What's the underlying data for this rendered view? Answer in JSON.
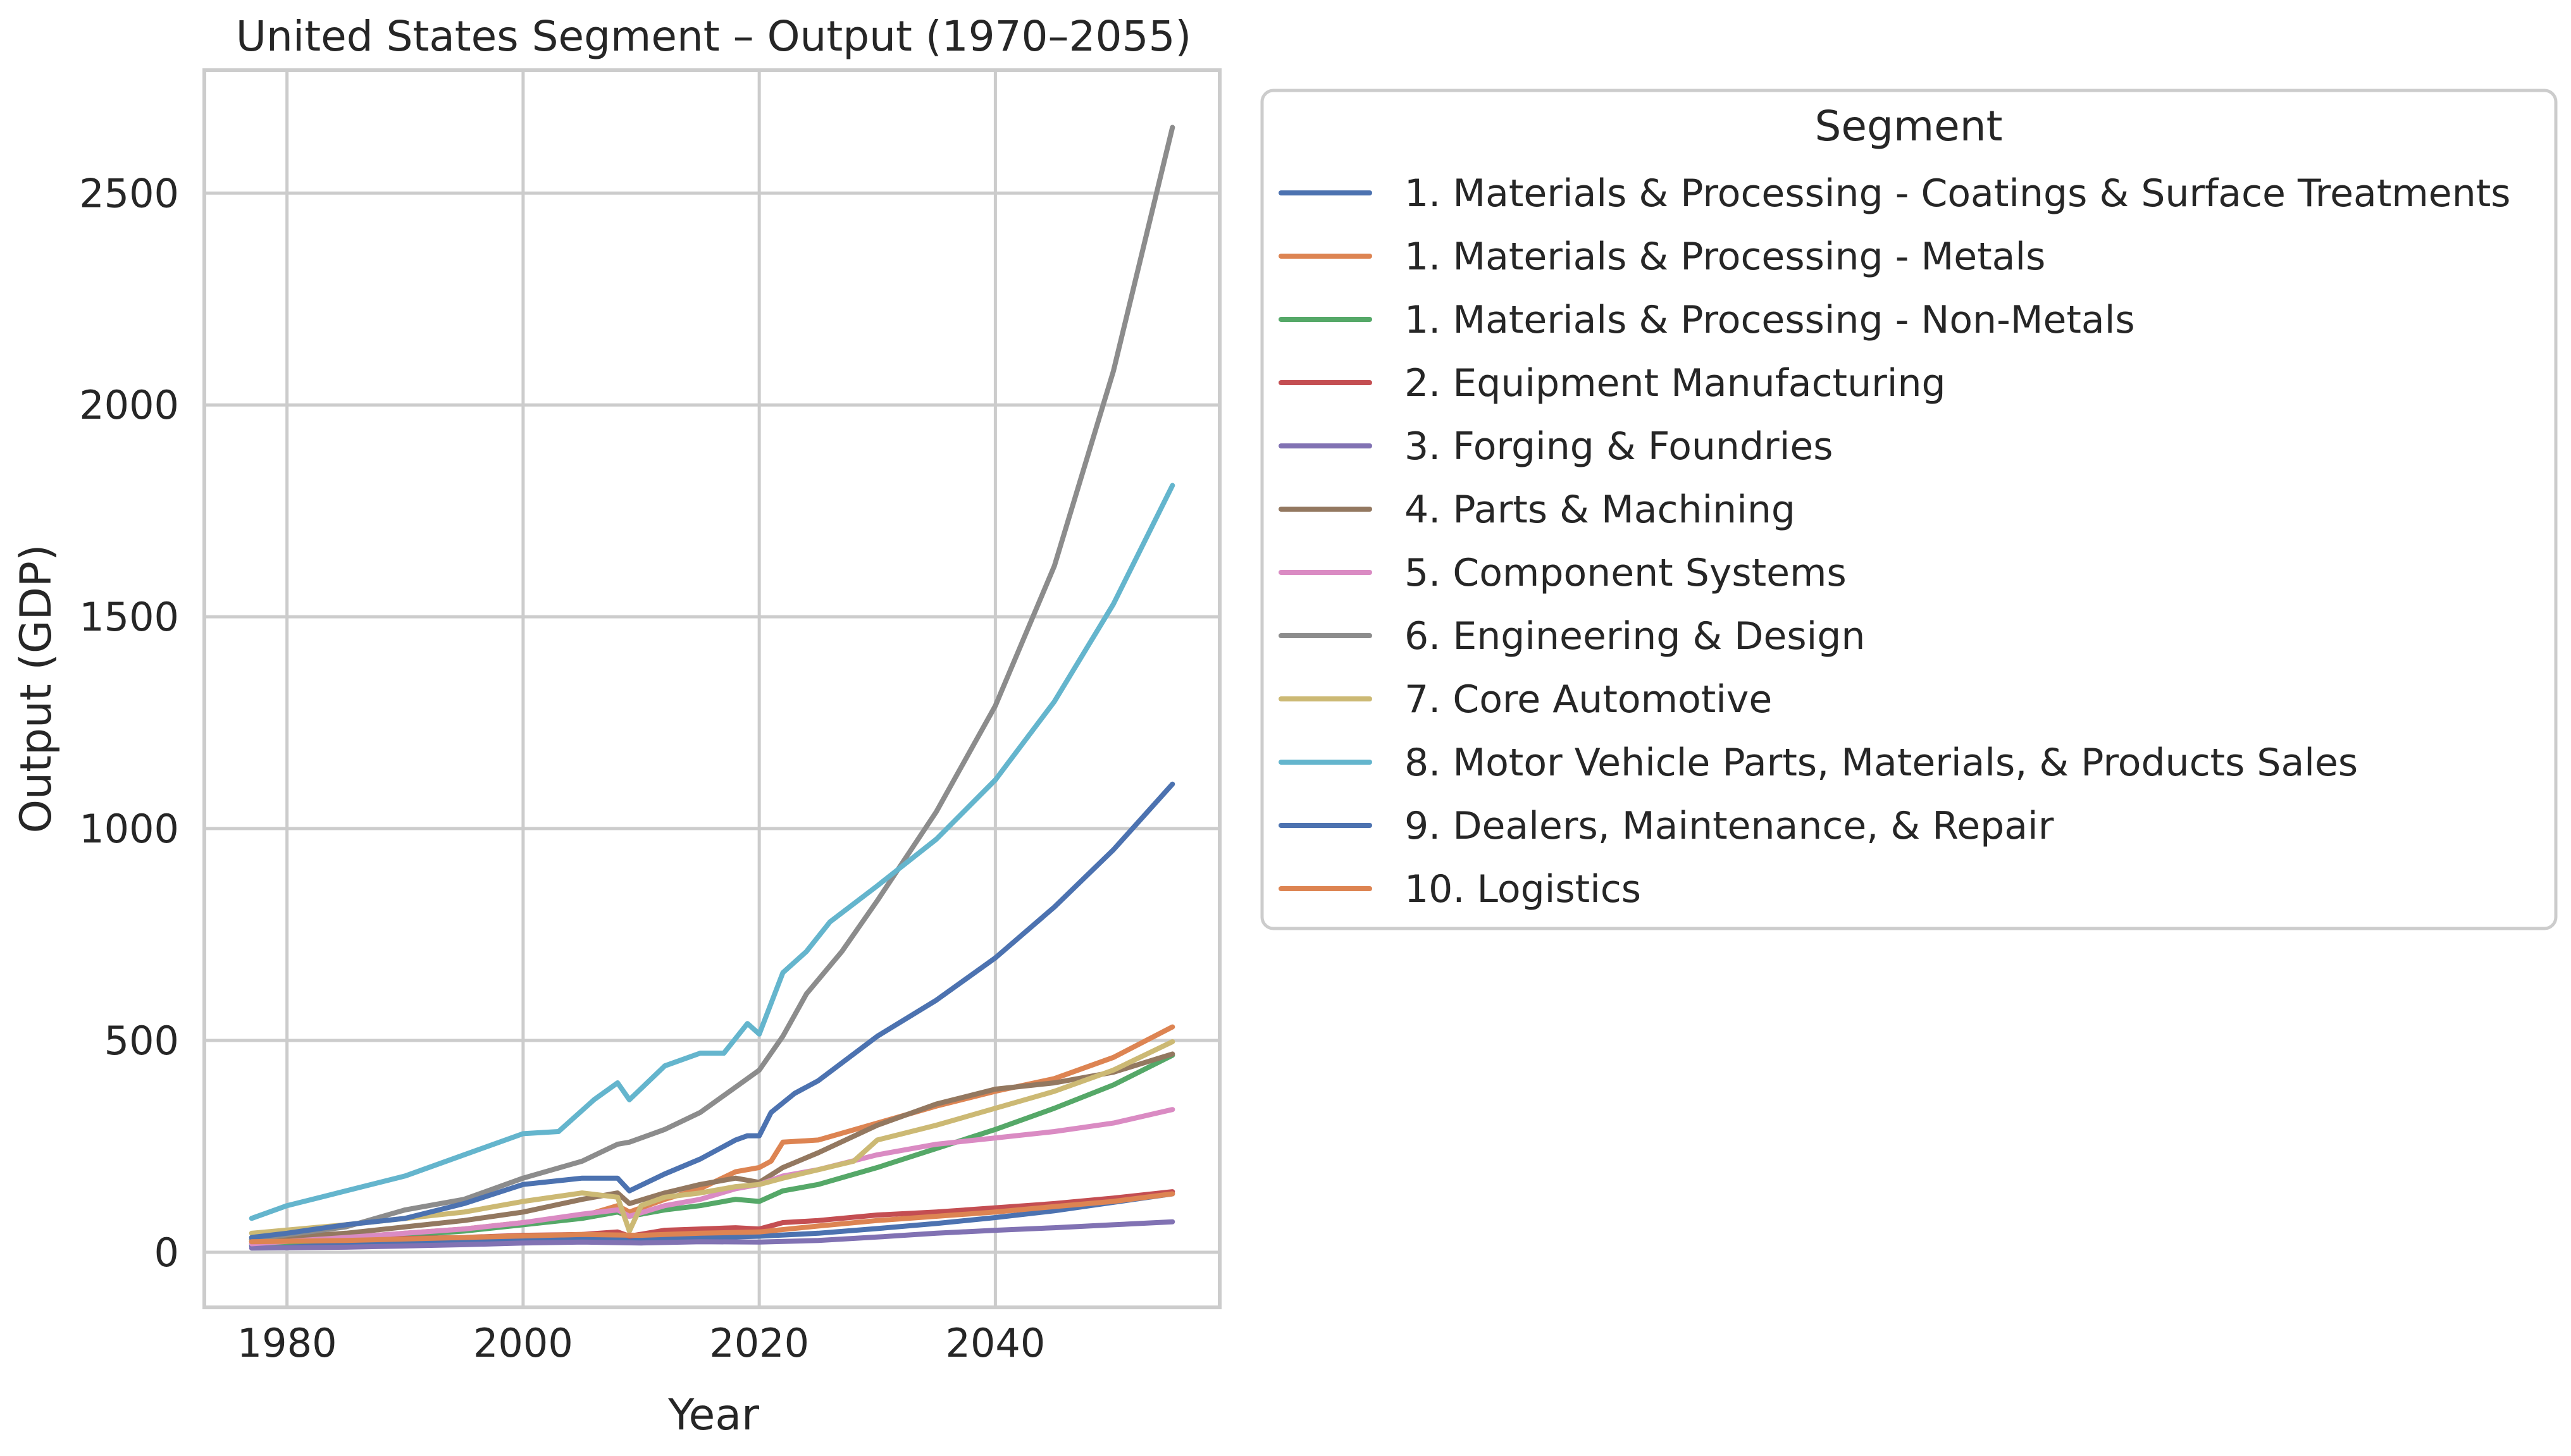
{
  "chart_data": {
    "type": "line",
    "title": "United States Segment – Output (1970–2055)",
    "xlabel": "Year",
    "ylabel": "Output (GDP)",
    "xlim": [
      1973,
      2059
    ],
    "ylim": [
      -130,
      2790
    ],
    "xticks": [
      1980,
      2000,
      2020,
      2040
    ],
    "yticks": [
      0,
      500,
      1000,
      1500,
      2000,
      2500
    ],
    "grid": true,
    "legend": {
      "title": "Segment",
      "placement": "outside-right-top"
    },
    "series": [
      {
        "name": "1. Materials & Processing - Coatings & Surface Treatments",
        "color": "#4c72b0",
        "x": [
          1977,
          1985,
          1995,
          2005,
          2010,
          2015,
          2020,
          2025,
          2030,
          2035,
          2040,
          2045,
          2050,
          2055
        ],
        "values": [
          15,
          20,
          28,
          32,
          30,
          34,
          38,
          45,
          56,
          68,
          82,
          98,
          118,
          138
        ]
      },
      {
        "name": "1. Materials & Processing - Metals",
        "color": "#dd8452",
        "x": [
          1977,
          1985,
          1995,
          2000,
          2005,
          2008,
          2009,
          2012,
          2015,
          2018,
          2020,
          2021,
          2022,
          2025,
          2030,
          2035,
          2040,
          2045,
          2050,
          2055
        ],
        "values": [
          25,
          35,
          55,
          70,
          85,
          110,
          95,
          125,
          150,
          190,
          200,
          215,
          260,
          265,
          305,
          345,
          380,
          410,
          460,
          532
        ]
      },
      {
        "name": "1. Materials & Processing - Non-Metals",
        "color": "#55a868",
        "x": [
          1977,
          1985,
          1995,
          2000,
          2005,
          2008,
          2009,
          2012,
          2015,
          2018,
          2020,
          2022,
          2025,
          2030,
          2035,
          2040,
          2045,
          2050,
          2055
        ],
        "values": [
          20,
          30,
          50,
          65,
          80,
          95,
          85,
          100,
          110,
          125,
          120,
          145,
          160,
          200,
          245,
          290,
          340,
          395,
          465
        ]
      },
      {
        "name": "2. Equipment Manufacturing",
        "color": "#c44e52",
        "x": [
          1977,
          1985,
          1995,
          2000,
          2005,
          2008,
          2009,
          2012,
          2015,
          2018,
          2020,
          2022,
          2025,
          2030,
          2035,
          2040,
          2045,
          2050,
          2055
        ],
        "values": [
          25,
          30,
          35,
          40,
          42,
          48,
          38,
          52,
          55,
          58,
          55,
          70,
          75,
          88,
          95,
          105,
          115,
          128,
          143
        ]
      },
      {
        "name": "3. Forging & Foundries",
        "color": "#8172b3",
        "x": [
          1977,
          1985,
          1995,
          2000,
          2005,
          2010,
          2015,
          2020,
          2025,
          2030,
          2035,
          2040,
          2045,
          2050,
          2055
        ],
        "values": [
          10,
          12,
          18,
          22,
          24,
          22,
          25,
          24,
          28,
          36,
          45,
          52,
          58,
          65,
          72
        ]
      },
      {
        "name": "4. Parts & Machining",
        "color": "#937860",
        "x": [
          1977,
          1985,
          1995,
          2000,
          2005,
          2008,
          2009,
          2012,
          2015,
          2018,
          2020,
          2022,
          2025,
          2030,
          2035,
          2040,
          2045,
          2050,
          2055
        ],
        "values": [
          30,
          45,
          75,
          95,
          125,
          140,
          115,
          140,
          160,
          175,
          165,
          200,
          235,
          300,
          350,
          385,
          400,
          425,
          468
        ]
      },
      {
        "name": "5. Component Systems",
        "color": "#da8bc3",
        "x": [
          1977,
          1985,
          1995,
          2000,
          2005,
          2008,
          2009,
          2012,
          2015,
          2018,
          2020,
          2022,
          2025,
          2030,
          2035,
          2040,
          2045,
          2050,
          2055
        ],
        "values": [
          20,
          35,
          55,
          70,
          90,
          100,
          85,
          110,
          125,
          150,
          160,
          180,
          195,
          230,
          255,
          270,
          285,
          305,
          337
        ]
      },
      {
        "name": "6. Engineering & Design",
        "color": "#8c8c8c",
        "x": [
          1977,
          1985,
          1990,
          1995,
          2000,
          2005,
          2008,
          2009,
          2012,
          2015,
          2018,
          2020,
          2022,
          2024,
          2027,
          2030,
          2035,
          2040,
          2045,
          2050,
          2055
        ],
        "values": [
          30,
          60,
          100,
          125,
          175,
          215,
          255,
          260,
          290,
          330,
          390,
          430,
          510,
          610,
          710,
          830,
          1040,
          1290,
          1620,
          2080,
          2655
        ]
      },
      {
        "name": "7. Core Automotive",
        "color": "#ccb974",
        "x": [
          1977,
          1985,
          1995,
          2000,
          2005,
          2008,
          2009,
          2010,
          2012,
          2015,
          2018,
          2020,
          2022,
          2025,
          2028,
          2030,
          2035,
          2040,
          2045,
          2050,
          2055
        ],
        "values": [
          45,
          65,
          95,
          120,
          140,
          130,
          50,
          110,
          130,
          140,
          155,
          160,
          175,
          195,
          215,
          265,
          300,
          340,
          380,
          430,
          497
        ]
      },
      {
        "name": "8. Motor Vehicle Parts, Materials, & Products Sales",
        "color": "#64b5cd",
        "x": [
          1977,
          1980,
          1985,
          1990,
          1995,
          2000,
          2003,
          2006,
          2008,
          2009,
          2012,
          2015,
          2017,
          2019,
          2020,
          2022,
          2024,
          2026,
          2030,
          2035,
          2040,
          2045,
          2050,
          2055
        ],
        "values": [
          80,
          110,
          145,
          180,
          230,
          280,
          285,
          360,
          400,
          360,
          440,
          470,
          470,
          540,
          515,
          660,
          710,
          780,
          865,
          975,
          1115,
          1300,
          1530,
          1810
        ]
      },
      {
        "name": "9. Dealers, Maintenance, & Repair",
        "color": "#4c72b0",
        "x": [
          1977,
          1980,
          1985,
          1990,
          1995,
          2000,
          2005,
          2008,
          2009,
          2012,
          2015,
          2018,
          2019,
          2020,
          2021,
          2023,
          2025,
          2030,
          2035,
          2040,
          2045,
          2050,
          2055
        ],
        "values": [
          35,
          45,
          65,
          80,
          115,
          160,
          175,
          175,
          145,
          185,
          220,
          265,
          275,
          275,
          330,
          375,
          405,
          510,
          595,
          695,
          815,
          950,
          1105
        ]
      },
      {
        "name": "10. Logistics",
        "color": "#dd8452",
        "x": [
          1977,
          1985,
          1995,
          2005,
          2010,
          2015,
          2020,
          2025,
          2030,
          2035,
          2040,
          2045,
          2050,
          2055
        ],
        "values": [
          25,
          28,
          35,
          42,
          40,
          45,
          48,
          62,
          75,
          85,
          95,
          108,
          120,
          138
        ]
      }
    ]
  }
}
